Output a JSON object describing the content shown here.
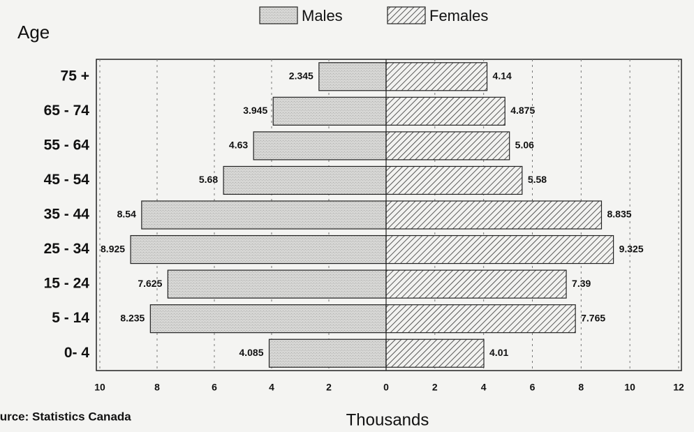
{
  "chart_data": {
    "type": "pyramid",
    "title": "Age",
    "xlabel": "Thousands",
    "source": "Source:  Statistics Canada",
    "categories": [
      "75 +",
      "65 - 74",
      "55 - 64",
      "45 - 54",
      "35 - 44",
      "25 - 34",
      "15 - 24",
      "5 - 14",
      "0- 4"
    ],
    "series": [
      {
        "name": "Males",
        "side": "left",
        "color": "#d4d4d2",
        "xlim": [
          0,
          10
        ],
        "xticks": [
          10,
          8,
          6,
          4,
          2,
          0
        ],
        "values": [
          2.345,
          3.945,
          4.63,
          5.68,
          8.54,
          8.925,
          7.625,
          8.235,
          4.085
        ]
      },
      {
        "name": "Females",
        "side": "right",
        "color": "#333333",
        "xlim": [
          0,
          12
        ],
        "xticks": [
          2,
          4,
          6,
          8,
          10,
          12
        ],
        "values": [
          4.14,
          4.875,
          5.06,
          5.58,
          8.835,
          9.325,
          7.39,
          7.765,
          4.01
        ]
      }
    ],
    "grid": true
  }
}
